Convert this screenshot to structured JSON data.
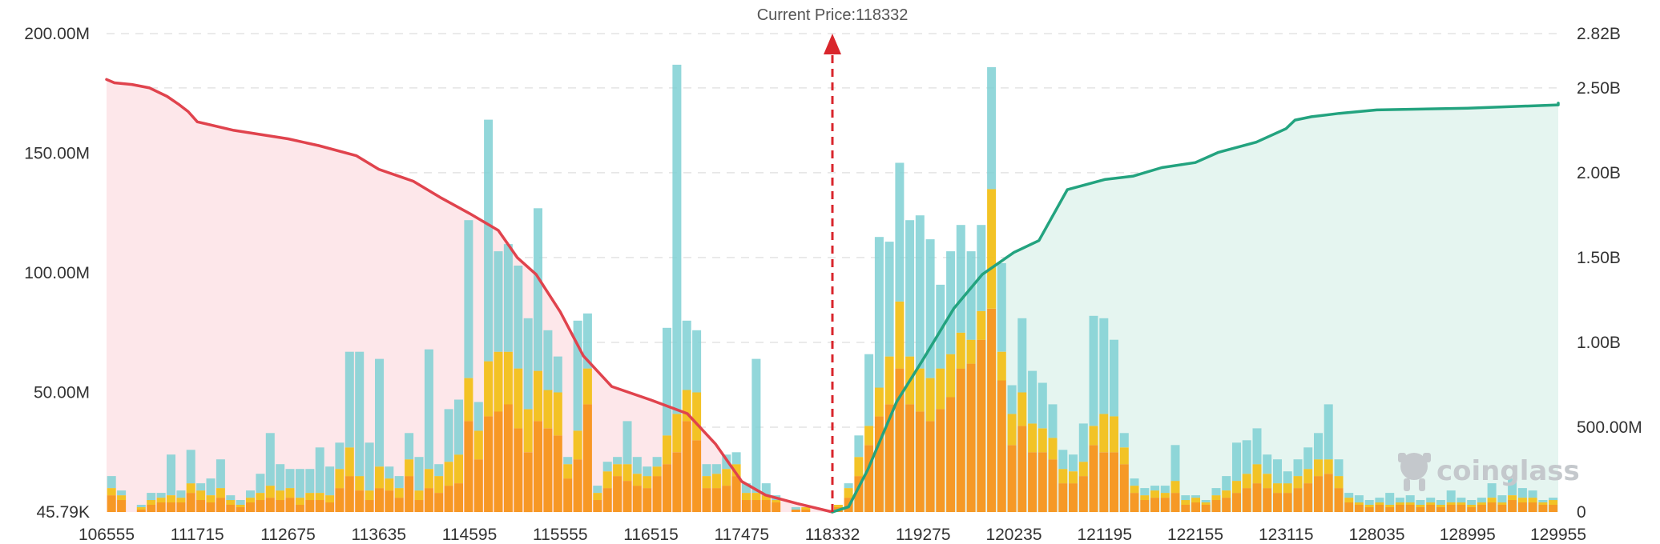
{
  "chart_data": {
    "type": "bar",
    "current_price_label": "Current Price:118332",
    "current_price": 118332,
    "x_tick_labels": [
      "106555",
      "111715",
      "112675",
      "113635",
      "114595",
      "115555",
      "116515",
      "117475",
      "118332",
      "119275",
      "120235",
      "121195",
      "122155",
      "123115",
      "128035",
      "128995",
      "129955"
    ],
    "y_left": {
      "ticks": [
        0,
        50,
        100,
        150,
        200
      ],
      "tick_labels": [
        "45.79K",
        "50.00M",
        "100.00M",
        "150.00M",
        "200.00M"
      ],
      "unit": "M",
      "range": [
        0,
        200
      ]
    },
    "y_right": {
      "ticks": [
        0,
        0.5,
        1.0,
        1.5,
        2.0,
        2.5,
        2.82
      ],
      "tick_labels": [
        "0",
        "500.00M",
        "1.00B",
        "1.50B",
        "2.00B",
        "2.50B",
        "2.82B"
      ],
      "unit": "B",
      "range": [
        0,
        2.82
      ]
    },
    "colors": {
      "bar_high": "#7fd0d4",
      "bar_mid": "#f2c01a",
      "bar_low": "#f7931a",
      "long_line": "#e0434d",
      "long_fill": "#fde7ea",
      "short_line": "#23a37f",
      "short_fill": "#e5f5f0",
      "current_price": "#d9262c",
      "grid": "#e4e4e4"
    },
    "series": [
      {
        "name": "bars",
        "stacks": [
          "low",
          "mid",
          "high"
        ],
        "left_values": [
          [
            7,
            3,
            5
          ],
          [
            5,
            2,
            2
          ],
          [
            0,
            0,
            0
          ],
          [
            1,
            1,
            1
          ],
          [
            3,
            2,
            3
          ],
          [
            4,
            2,
            2
          ],
          [
            4,
            3,
            17
          ],
          [
            4,
            2,
            3
          ],
          [
            8,
            4,
            14
          ],
          [
            5,
            4,
            3
          ],
          [
            4,
            3,
            7
          ],
          [
            6,
            4,
            12
          ],
          [
            3,
            2,
            2
          ],
          [
            2,
            1,
            2
          ],
          [
            4,
            2,
            3
          ],
          [
            5,
            3,
            8
          ],
          [
            6,
            5,
            22
          ],
          [
            5,
            4,
            11
          ],
          [
            6,
            4,
            8
          ],
          [
            3,
            3,
            12
          ],
          [
            5,
            3,
            10
          ],
          [
            5,
            3,
            19
          ],
          [
            4,
            3,
            12
          ],
          [
            10,
            8,
            11
          ],
          [
            15,
            12,
            40
          ],
          [
            9,
            6,
            52
          ],
          [
            5,
            4,
            20
          ],
          [
            10,
            9,
            45
          ],
          [
            9,
            5,
            5
          ],
          [
            6,
            4,
            5
          ],
          [
            15,
            7,
            11
          ],
          [
            5,
            4,
            14
          ],
          [
            10,
            8,
            50
          ],
          [
            8,
            7,
            5
          ],
          [
            11,
            10,
            22
          ],
          [
            12,
            12,
            23
          ],
          [
            38,
            18,
            66
          ],
          [
            22,
            12,
            12
          ],
          [
            40,
            23,
            101
          ],
          [
            42,
            25,
            42
          ],
          [
            45,
            22,
            45
          ],
          [
            35,
            25,
            43
          ],
          [
            25,
            18,
            38
          ],
          [
            38,
            21,
            68
          ],
          [
            35,
            16,
            25
          ],
          [
            32,
            18,
            15
          ],
          [
            14,
            6,
            3
          ],
          [
            22,
            12,
            46
          ],
          [
            45,
            15,
            23
          ],
          [
            5,
            3,
            3
          ],
          [
            10,
            7,
            4
          ],
          [
            15,
            5,
            3
          ],
          [
            13,
            7,
            18
          ],
          [
            11,
            5,
            7
          ],
          [
            10,
            5,
            4
          ],
          [
            15,
            4,
            4
          ],
          [
            20,
            12,
            45
          ],
          [
            25,
            16,
            146
          ],
          [
            38,
            13,
            29
          ],
          [
            30,
            20,
            26
          ],
          [
            10,
            5,
            5
          ],
          [
            10,
            6,
            4
          ],
          [
            11,
            7,
            6
          ],
          [
            15,
            5,
            5
          ],
          [
            5,
            3,
            4
          ],
          [
            5,
            3,
            56
          ],
          [
            5,
            2,
            5
          ],
          [
            4,
            1,
            2
          ],
          [
            0,
            0,
            0
          ],
          [
            1,
            0,
            1
          ],
          [
            1,
            1,
            0
          ]
        ],
        "right_values": [
          [
            2,
            1,
            0
          ],
          [
            6,
            4,
            2
          ],
          [
            15,
            8,
            9
          ],
          [
            28,
            8,
            30
          ],
          [
            40,
            12,
            63
          ],
          [
            45,
            20,
            48
          ],
          [
            60,
            28,
            58
          ],
          [
            45,
            20,
            57
          ],
          [
            42,
            18,
            64
          ],
          [
            38,
            18,
            58
          ],
          [
            43,
            17,
            35
          ],
          [
            48,
            18,
            43
          ],
          [
            60,
            15,
            45
          ],
          [
            62,
            10,
            37
          ],
          [
            72,
            12,
            36
          ],
          [
            85,
            50,
            51
          ],
          [
            55,
            12,
            37
          ],
          [
            28,
            13,
            12
          ],
          [
            36,
            14,
            31
          ],
          [
            25,
            12,
            22
          ],
          [
            25,
            10,
            19
          ],
          [
            22,
            9,
            14
          ],
          [
            12,
            6,
            8
          ],
          [
            12,
            5,
            7
          ],
          [
            15,
            6,
            16
          ],
          [
            28,
            8,
            46
          ],
          [
            25,
            16,
            40
          ],
          [
            25,
            15,
            32
          ],
          [
            20,
            7,
            6
          ],
          [
            8,
            3,
            3
          ],
          [
            5,
            2,
            3
          ],
          [
            6,
            3,
            2
          ],
          [
            6,
            2,
            3
          ],
          [
            8,
            5,
            15
          ],
          [
            3,
            2,
            2
          ],
          [
            4,
            2,
            1
          ],
          [
            3,
            1,
            1
          ],
          [
            5,
            2,
            3
          ],
          [
            6,
            3,
            6
          ],
          [
            8,
            5,
            16
          ],
          [
            10,
            6,
            14
          ],
          [
            12,
            8,
            15
          ],
          [
            10,
            6,
            8
          ],
          [
            8,
            4,
            10
          ],
          [
            8,
            4,
            5
          ],
          [
            10,
            5,
            7
          ],
          [
            12,
            6,
            9
          ],
          [
            15,
            7,
            11
          ],
          [
            16,
            6,
            23
          ],
          [
            10,
            5,
            7
          ],
          [
            4,
            2,
            2
          ],
          [
            3,
            1,
            3
          ],
          [
            2,
            1,
            2
          ],
          [
            3,
            1,
            2
          ],
          [
            2,
            1,
            5
          ],
          [
            3,
            1,
            2
          ],
          [
            3,
            1,
            3
          ],
          [
            2,
            1,
            2
          ],
          [
            3,
            1,
            2
          ],
          [
            2,
            1,
            2
          ],
          [
            3,
            1,
            5
          ],
          [
            3,
            1,
            2
          ],
          [
            2,
            1,
            2
          ],
          [
            3,
            1,
            2
          ],
          [
            4,
            2,
            6
          ],
          [
            3,
            1,
            3
          ],
          [
            5,
            2,
            7
          ],
          [
            4,
            2,
            4
          ],
          [
            4,
            2,
            3
          ],
          [
            3,
            1,
            1
          ],
          [
            3,
            2,
            1
          ]
        ]
      },
      {
        "name": "long",
        "x": [
          106555,
          107000,
          108000,
          109000,
          110000,
          110700,
          111200,
          111715,
          112100,
          112675,
          113000,
          113400,
          113635,
          114000,
          114300,
          114595,
          114900,
          115100,
          115300,
          115555,
          115800,
          116100,
          116515,
          116900,
          117200,
          117475,
          117700,
          118000,
          118332
        ],
        "values": [
          2.55,
          2.53,
          2.52,
          2.5,
          2.45,
          2.4,
          2.36,
          2.3,
          2.25,
          2.2,
          2.16,
          2.1,
          2.02,
          1.95,
          1.85,
          1.76,
          1.66,
          1.5,
          1.4,
          1.18,
          0.92,
          0.74,
          0.66,
          0.58,
          0.4,
          0.18,
          0.1,
          0.05,
          0.0
        ]
      },
      {
        "name": "short",
        "x": [
          118332,
          118500,
          118700,
          119000,
          119275,
          119600,
          119900,
          120235,
          120500,
          120800,
          121195,
          121500,
          121800,
          122155,
          122400,
          122800,
          123115,
          123600,
          124500,
          126000,
          128035,
          128995,
          129955,
          130600
        ],
        "values": [
          0.0,
          0.03,
          0.25,
          0.65,
          0.9,
          1.2,
          1.4,
          1.53,
          1.6,
          1.9,
          1.96,
          1.98,
          2.03,
          2.06,
          2.12,
          2.18,
          2.26,
          2.31,
          2.33,
          2.35,
          2.37,
          2.38,
          2.4,
          2.41
        ]
      }
    ]
  },
  "watermark": {
    "text": "coinglass",
    "icon": "coinglass-logo-icon"
  }
}
